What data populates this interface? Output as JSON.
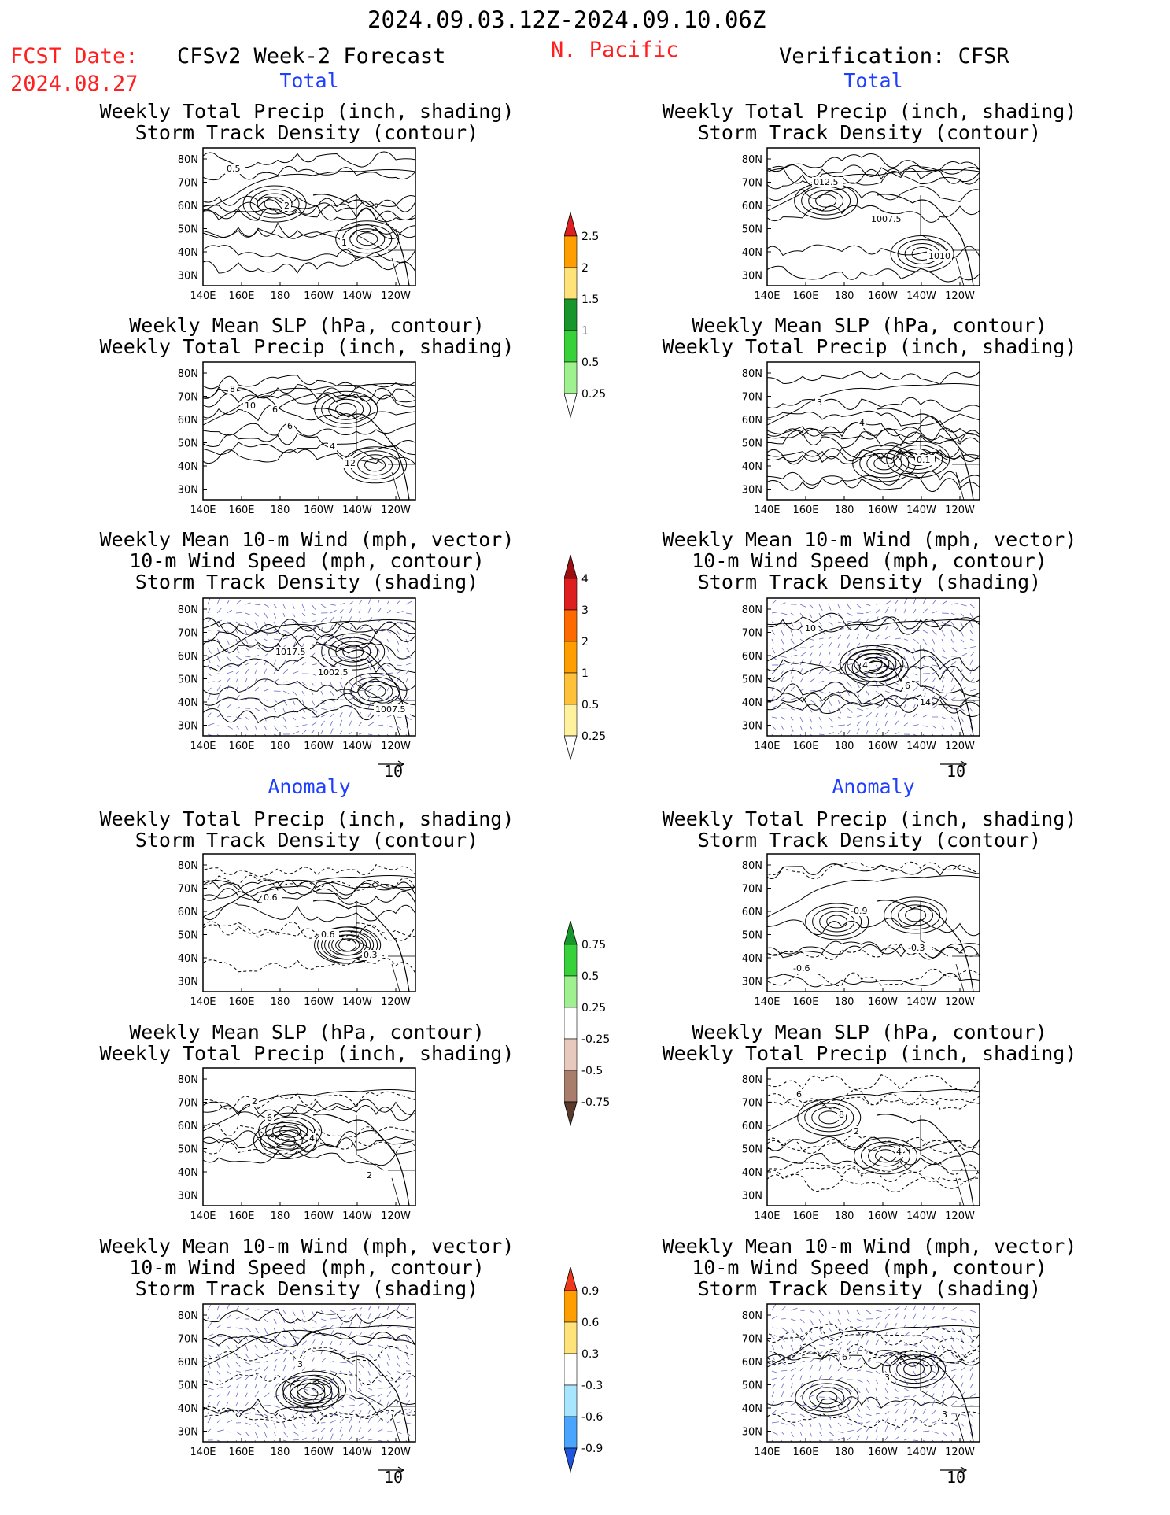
{
  "header": {
    "date_range": "2024.09.03.12Z-2024.09.10.06Z",
    "fcst_label": "FCST Date:",
    "fcst_date": "2024.08.27",
    "left_title": "CFSv2 Week-2 Forecast",
    "region": "N. Pacific",
    "right_title": "Verification: CFSR"
  },
  "sections": {
    "total": "Total",
    "anomaly": "Anomaly"
  },
  "panel_titles": {
    "precip_track": [
      "Weekly Total Precip (inch, shading)",
      "Storm Track Density (contour)"
    ],
    "slp_precip": [
      "Weekly Mean SLP (hPa, contour)",
      "Weekly Total Precip (inch, shading)"
    ],
    "wind_track": [
      "Weekly Mean 10-m Wind (mph, vector)",
      "10-m Wind Speed (mph, contour)",
      "Storm Track Density (shading)"
    ]
  },
  "axes": {
    "lat_labels": [
      "80N",
      "70N",
      "60N",
      "50N",
      "40N",
      "30N"
    ],
    "lon_labels": [
      "140E",
      "160E",
      "180",
      "160W",
      "140W",
      "120W"
    ]
  },
  "vector_ref": "10",
  "contour_labels": {
    "p1": [
      "0.5",
      "2",
      "1"
    ],
    "p2": [
      "012.5",
      "1007.5",
      "1010"
    ],
    "p3": [
      "6",
      "4",
      "8",
      "6",
      "12",
      "10"
    ],
    "p4": [
      "4",
      "0.1",
      "3"
    ],
    "p5": [
      "1002.5",
      "1007.5",
      "1017.5"
    ],
    "p6": [
      "6",
      "10",
      "4",
      "14"
    ],
    "p7": [
      "0.3",
      "0.6",
      "0.6"
    ],
    "p8": [
      "-0.6",
      "-0.9",
      "-0.3"
    ],
    "p9": [
      "2",
      "4",
      "2",
      "6"
    ],
    "p10": [
      "8",
      "4",
      "6",
      "2"
    ],
    "p11": [
      "3"
    ],
    "p12": [
      "3",
      "3",
      "6"
    ]
  },
  "colorbars": [
    {
      "name": "precip_total",
      "labels": [
        "2.5",
        "2",
        "1.5",
        "1",
        "0.5",
        "0.25"
      ],
      "colors": [
        "#dd1f1f",
        "#ff9e00",
        "#ffe27a",
        "#19962b",
        "#37d13a",
        "#9ff08f",
        "#ffffff"
      ]
    },
    {
      "name": "track_total",
      "labels": [
        "4",
        "3",
        "2",
        "1",
        "0.5",
        "0.25"
      ],
      "colors": [
        "#9b0f0f",
        "#dd1f1f",
        "#ff6a00",
        "#ff9e00",
        "#ffc13a",
        "#fff19e",
        "#ffffff"
      ]
    },
    {
      "name": "precip_anom",
      "labels": [
        "0.75",
        "0.5",
        "0.25",
        "-0.25",
        "-0.5",
        "-0.75"
      ],
      "colors": [
        "#19962b",
        "#37d13a",
        "#9ff08f",
        "#ffffff",
        "#e8c9bd",
        "#a87d6c",
        "#5b3a2c"
      ]
    },
    {
      "name": "track_anom",
      "labels": [
        "0.9",
        "0.6",
        "0.3",
        "-0.3",
        "-0.6",
        "-0.9"
      ],
      "colors": [
        "#ee3a1a",
        "#ff9e00",
        "#ffe27a",
        "#ffffff",
        "#a8e6ff",
        "#4aa5ff",
        "#1f56dd"
      ]
    }
  ]
}
